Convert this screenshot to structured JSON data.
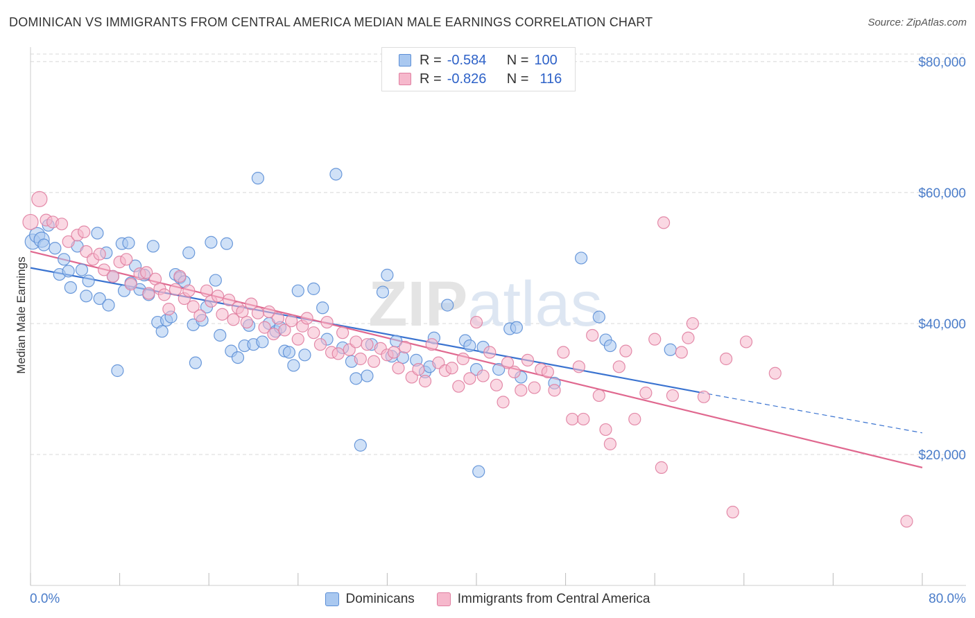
{
  "title": "DOMINICAN VS IMMIGRANTS FROM CENTRAL AMERICA MEDIAN MALE EARNINGS CORRELATION CHART",
  "source": "Source: ZipAtlas.com",
  "watermark": "ZIPatlas",
  "legend": {
    "rows": [
      {
        "r_label": "R =",
        "r_value": "-0.584",
        "n_label": "N =",
        "n_value": "100"
      },
      {
        "r_label": "R =",
        "r_value": "-0.826",
        "n_label": "N =",
        "n_value": "116"
      }
    ]
  },
  "bottom_legend": [
    "Dominicans",
    "Immigrants from Central America"
  ],
  "colors": {
    "blue_fill": "#a9c8f0",
    "blue_stroke": "#5b8ed6",
    "blue_line": "#3a73d0",
    "pink_fill": "#f6b8cc",
    "pink_stroke": "#e07ea0",
    "pink_line": "#e0688f",
    "grid": "#d8d8d8",
    "axis_text": "#4a7cc9"
  },
  "chart_data": {
    "type": "scatter",
    "title": "DOMINICAN VS IMMIGRANTS FROM CENTRAL AMERICA MEDIAN MALE EARNINGS CORRELATION CHART",
    "xlabel": "",
    "ylabel": "Median Male Earnings",
    "xlim": [
      0,
      80
    ],
    "ylim": [
      0,
      82000
    ],
    "x_tick_labels": [
      "0.0%",
      "80.0%"
    ],
    "y_tick_labels": [
      "$20,000",
      "$40,000",
      "$60,000",
      "$80,000"
    ],
    "y_ticks": [
      20000,
      40000,
      60000,
      80000
    ],
    "grid": true,
    "legend_position": "top-center",
    "series": [
      {
        "name": "Dominicans",
        "color": "#5b8ed6",
        "r": -0.584,
        "n": 100,
        "trend": {
          "x_start": 0,
          "y_start": 48500,
          "x_solid_end": 60,
          "y_solid_end": 29500,
          "x_dash_end": 80,
          "y_dash_end": 23300
        },
        "points": [
          [
            0.2,
            52500
          ],
          [
            0.6,
            53500
          ],
          [
            1.0,
            52800
          ],
          [
            1.2,
            52000
          ],
          [
            1.6,
            55000
          ],
          [
            2.2,
            51500
          ],
          [
            2.6,
            47500
          ],
          [
            3.0,
            49800
          ],
          [
            3.4,
            48000
          ],
          [
            3.6,
            45500
          ],
          [
            4.2,
            51800
          ],
          [
            4.6,
            48200
          ],
          [
            5.0,
            44200
          ],
          [
            5.2,
            46500
          ],
          [
            6.0,
            53800
          ],
          [
            6.2,
            43800
          ],
          [
            6.8,
            50800
          ],
          [
            7.0,
            42800
          ],
          [
            7.4,
            47200
          ],
          [
            7.8,
            32800
          ],
          [
            8.2,
            52200
          ],
          [
            8.4,
            45000
          ],
          [
            8.8,
            52300
          ],
          [
            9.0,
            46200
          ],
          [
            9.4,
            48800
          ],
          [
            9.8,
            45200
          ],
          [
            10.2,
            47400
          ],
          [
            10.6,
            44400
          ],
          [
            11.0,
            51800
          ],
          [
            11.4,
            40200
          ],
          [
            11.8,
            38800
          ],
          [
            12.2,
            40500
          ],
          [
            12.6,
            41000
          ],
          [
            13.0,
            47500
          ],
          [
            13.4,
            47000
          ],
          [
            13.8,
            46400
          ],
          [
            14.2,
            50800
          ],
          [
            14.6,
            39800
          ],
          [
            14.8,
            34000
          ],
          [
            15.4,
            40500
          ],
          [
            15.8,
            42500
          ],
          [
            16.2,
            52400
          ],
          [
            16.6,
            46600
          ],
          [
            17.0,
            38200
          ],
          [
            17.6,
            52200
          ],
          [
            18.0,
            35800
          ],
          [
            18.6,
            34800
          ],
          [
            19.2,
            36600
          ],
          [
            19.6,
            39700
          ],
          [
            20.0,
            36800
          ],
          [
            20.4,
            62200
          ],
          [
            20.8,
            37200
          ],
          [
            21.4,
            40000
          ],
          [
            22.0,
            38800
          ],
          [
            22.4,
            39400
          ],
          [
            22.8,
            35800
          ],
          [
            23.2,
            35600
          ],
          [
            23.6,
            33600
          ],
          [
            24.0,
            45000
          ],
          [
            24.6,
            35200
          ],
          [
            25.4,
            45300
          ],
          [
            26.2,
            42400
          ],
          [
            26.6,
            37600
          ],
          [
            27.4,
            62800
          ],
          [
            28.0,
            36300
          ],
          [
            28.8,
            34200
          ],
          [
            29.2,
            31600
          ],
          [
            29.6,
            21400
          ],
          [
            30.2,
            32000
          ],
          [
            30.6,
            36800
          ],
          [
            31.6,
            44800
          ],
          [
            32.0,
            47400
          ],
          [
            32.4,
            35000
          ],
          [
            32.8,
            37300
          ],
          [
            33.4,
            34800
          ],
          [
            34.6,
            34400
          ],
          [
            35.4,
            32600
          ],
          [
            35.8,
            33400
          ],
          [
            36.2,
            37800
          ],
          [
            37.4,
            42800
          ],
          [
            39.0,
            37400
          ],
          [
            39.4,
            36600
          ],
          [
            40.0,
            33000
          ],
          [
            40.2,
            17400
          ],
          [
            40.6,
            36400
          ],
          [
            42.0,
            33000
          ],
          [
            43.0,
            39200
          ],
          [
            43.6,
            39400
          ],
          [
            44.0,
            31800
          ],
          [
            47.0,
            30900
          ],
          [
            49.4,
            50000
          ],
          [
            51.0,
            41000
          ],
          [
            51.6,
            37500
          ],
          [
            52.0,
            36600
          ],
          [
            57.4,
            36000
          ]
        ]
      },
      {
        "name": "Immigrants from Central America",
        "color": "#e07ea0",
        "r": -0.826,
        "n": 116,
        "trend": {
          "x_start": 0,
          "y_start": 51000,
          "x_end": 80,
          "y_end": 18000
        },
        "points": [
          [
            0.0,
            55500
          ],
          [
            0.8,
            59000
          ],
          [
            1.4,
            55800
          ],
          [
            2.0,
            55500
          ],
          [
            2.8,
            55200
          ],
          [
            3.4,
            52500
          ],
          [
            4.2,
            53500
          ],
          [
            4.8,
            54000
          ],
          [
            5.0,
            51000
          ],
          [
            5.6,
            49800
          ],
          [
            6.2,
            50600
          ],
          [
            6.6,
            48200
          ],
          [
            7.4,
            47200
          ],
          [
            8.0,
            49400
          ],
          [
            8.6,
            49800
          ],
          [
            9.0,
            46000
          ],
          [
            9.8,
            47600
          ],
          [
            10.4,
            47800
          ],
          [
            10.6,
            44600
          ],
          [
            11.2,
            46800
          ],
          [
            11.6,
            45300
          ],
          [
            12.0,
            44400
          ],
          [
            12.4,
            42200
          ],
          [
            13.0,
            45200
          ],
          [
            13.4,
            47200
          ],
          [
            13.8,
            43800
          ],
          [
            14.2,
            45000
          ],
          [
            14.6,
            42600
          ],
          [
            15.2,
            41200
          ],
          [
            15.8,
            45000
          ],
          [
            16.2,
            43400
          ],
          [
            16.8,
            44200
          ],
          [
            17.2,
            41400
          ],
          [
            17.8,
            43600
          ],
          [
            18.2,
            40600
          ],
          [
            18.6,
            42400
          ],
          [
            19.0,
            41800
          ],
          [
            19.4,
            40200
          ],
          [
            19.8,
            43000
          ],
          [
            20.4,
            41600
          ],
          [
            21.0,
            39400
          ],
          [
            21.4,
            41800
          ],
          [
            21.8,
            38400
          ],
          [
            22.2,
            40800
          ],
          [
            22.8,
            39000
          ],
          [
            23.4,
            40400
          ],
          [
            24.0,
            37600
          ],
          [
            24.4,
            39600
          ],
          [
            24.8,
            40800
          ],
          [
            25.4,
            38600
          ],
          [
            26.0,
            36800
          ],
          [
            26.6,
            40200
          ],
          [
            27.0,
            35600
          ],
          [
            27.6,
            35400
          ],
          [
            28.0,
            38600
          ],
          [
            28.6,
            36000
          ],
          [
            29.2,
            37200
          ],
          [
            29.6,
            34600
          ],
          [
            30.2,
            36800
          ],
          [
            30.8,
            34200
          ],
          [
            31.4,
            36200
          ],
          [
            32.0,
            35200
          ],
          [
            32.6,
            35600
          ],
          [
            33.0,
            33200
          ],
          [
            33.6,
            36400
          ],
          [
            34.2,
            31800
          ],
          [
            34.8,
            33000
          ],
          [
            35.4,
            31200
          ],
          [
            36.0,
            36800
          ],
          [
            36.6,
            34000
          ],
          [
            37.2,
            32800
          ],
          [
            37.8,
            33200
          ],
          [
            38.4,
            30400
          ],
          [
            38.8,
            34600
          ],
          [
            39.4,
            31600
          ],
          [
            40.0,
            40200
          ],
          [
            40.6,
            32000
          ],
          [
            41.2,
            35600
          ],
          [
            41.8,
            30600
          ],
          [
            42.4,
            28000
          ],
          [
            42.8,
            34000
          ],
          [
            43.4,
            32600
          ],
          [
            44.0,
            29800
          ],
          [
            44.6,
            34400
          ],
          [
            45.2,
            30200
          ],
          [
            45.8,
            33000
          ],
          [
            46.4,
            32600
          ],
          [
            47.0,
            29800
          ],
          [
            47.8,
            35600
          ],
          [
            48.6,
            25400
          ],
          [
            49.2,
            33400
          ],
          [
            49.6,
            25400
          ],
          [
            50.4,
            38200
          ],
          [
            51.0,
            29000
          ],
          [
            51.6,
            23800
          ],
          [
            52.0,
            21600
          ],
          [
            52.8,
            33400
          ],
          [
            53.4,
            35800
          ],
          [
            54.2,
            25400
          ],
          [
            55.2,
            29400
          ],
          [
            56.0,
            37600
          ],
          [
            56.6,
            18000
          ],
          [
            56.8,
            55400
          ],
          [
            57.6,
            29000
          ],
          [
            58.4,
            35600
          ],
          [
            59.0,
            37800
          ],
          [
            59.4,
            40000
          ],
          [
            60.4,
            28800
          ],
          [
            62.4,
            34600
          ],
          [
            63.0,
            11200
          ],
          [
            64.2,
            37200
          ],
          [
            66.8,
            32400
          ],
          [
            78.6,
            9800
          ]
        ]
      }
    ]
  }
}
